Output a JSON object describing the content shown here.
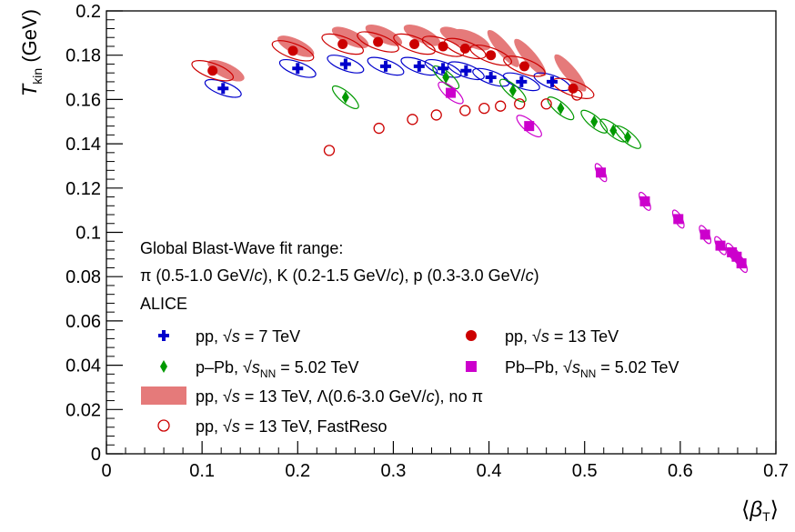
{
  "chart_data": {
    "type": "scatter",
    "xlim": [
      0,
      0.7
    ],
    "ylim": [
      0,
      0.2
    ],
    "x_ticks": [
      "0",
      "0.1",
      "0.2",
      "0.3",
      "0.4",
      "0.5",
      "0.6",
      "0.7"
    ],
    "y_ticks": [
      "0",
      "0.02",
      "0.04",
      "0.06",
      "0.08",
      "0.1",
      "0.12",
      "0.14",
      "0.16",
      "0.18",
      "0.2"
    ],
    "xlabel": "⟨β_T⟩",
    "ylabel": "T_kin (GeV)",
    "grid": false,
    "annotations": [
      "Global Blast-Wave fit range:",
      "π (0.5-1.0 GeV/c), K (0.2-1.5 GeV/c), p (0.3-3.0 GeV/c)",
      "ALICE"
    ],
    "legend": [
      {
        "key": "pp7",
        "text": "pp, √s = 7 TeV"
      },
      {
        "key": "pp13",
        "text": "pp, √s = 13 TeV"
      },
      {
        "key": "ppb",
        "text": "p–Pb, √sNN = 5.02 TeV"
      },
      {
        "key": "pbpb",
        "text": "Pb–Pb, √sNN = 5.02 TeV"
      },
      {
        "key": "lambda",
        "text": "pp, √s = 13 TeV, Λ(0.6-3.0 GeV/c), no π"
      },
      {
        "key": "fastreso",
        "text": "pp, √s = 13 TeV, FastReso"
      }
    ],
    "series": [
      {
        "name": "pp, √s = 7 TeV",
        "marker": "cross",
        "color": "#0000cc",
        "x": [
          0.122,
          0.2,
          0.25,
          0.292,
          0.327,
          0.352,
          0.376,
          0.402,
          0.434,
          0.466
        ],
        "y": [
          0.165,
          0.174,
          0.176,
          0.175,
          0.175,
          0.174,
          0.173,
          0.17,
          0.168,
          0.168
        ]
      },
      {
        "name": "pp, √s = 13 TeV",
        "marker": "circle",
        "color": "#cc0000",
        "x": [
          0.111,
          0.195,
          0.247,
          0.284,
          0.322,
          0.352,
          0.375,
          0.402,
          0.437,
          0.488
        ],
        "y": [
          0.173,
          0.182,
          0.185,
          0.186,
          0.185,
          0.184,
          0.183,
          0.18,
          0.175,
          0.165
        ]
      },
      {
        "name": "p–Pb, √sNN = 5.02 TeV",
        "marker": "diamond",
        "color": "#009900",
        "x": [
          0.25,
          0.355,
          0.425,
          0.475,
          0.51,
          0.53,
          0.545
        ],
        "y": [
          0.161,
          0.17,
          0.164,
          0.156,
          0.15,
          0.146,
          0.143
        ]
      },
      {
        "name": "Pb–Pb, √sNN = 5.02 TeV",
        "marker": "square",
        "color": "#cc00cc",
        "x": [
          0.36,
          0.442,
          0.517,
          0.563,
          0.598,
          0.626,
          0.642,
          0.654,
          0.659,
          0.664
        ],
        "y": [
          0.163,
          0.148,
          0.127,
          0.114,
          0.106,
          0.099,
          0.094,
          0.091,
          0.089,
          0.086
        ]
      },
      {
        "name": "pp, √s = 13 TeV, FastReso",
        "marker": "open-circle",
        "color": "#cc0000",
        "x": [
          0.233,
          0.285,
          0.32,
          0.345,
          0.375,
          0.395,
          0.412,
          0.432,
          0.46,
          0.492
        ],
        "y": [
          0.137,
          0.147,
          0.151,
          0.153,
          0.155,
          0.156,
          0.157,
          0.158,
          0.158,
          0.162
        ]
      },
      {
        "name": "pp, √s = 13 TeV, Λ(0.6-3.0 GeV/c), no π",
        "marker": "band",
        "color": "#e57a7a",
        "x": [
          0.125,
          0.198,
          0.255,
          0.29,
          0.33,
          0.368,
          0.382,
          0.415,
          0.443,
          0.485
        ],
        "y": [
          0.173,
          0.184,
          0.188,
          0.189,
          0.189,
          0.188,
          0.187,
          0.183,
          0.179,
          0.172
        ]
      }
    ]
  }
}
